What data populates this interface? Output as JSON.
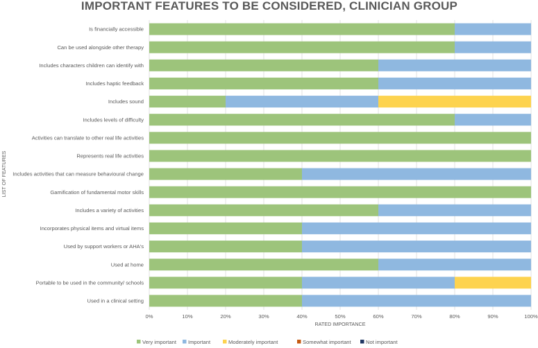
{
  "chart_data": {
    "type": "bar",
    "orientation": "horizontal",
    "stacked": "percent",
    "title": "IMPORTANT FEATURES TO BE CONSIDERED, CLINICIAN GROUP",
    "xlabel": "RATED IMPORTANCE",
    "ylabel": "LIST OF FEATURES",
    "xlim": [
      0,
      100
    ],
    "x_ticks": [
      "0%",
      "10%",
      "20%",
      "30%",
      "40%",
      "50%",
      "60%",
      "70%",
      "80%",
      "90%",
      "100%"
    ],
    "grid": true,
    "legend_position": "bottom",
    "categories": [
      "Is financially accessible",
      "Can be used alongside other therapy",
      "Includes characters children can identify with",
      "Includes haptic feedback",
      "Includes sound",
      "Includes levels of difficulty",
      "Activities can translate to other real life activities",
      "Represents real life activities",
      "Includes activities that can measure behavioural change",
      "Gamification of fundamental motor skills",
      "Includes a variety of activities",
      "Incorporates physical items and virtual items",
      "Used by support workers or AHA's",
      "Used at home",
      "Portable to be used in the community/ schools",
      "Used in a clinical setting"
    ],
    "series": [
      {
        "name": "Very important",
        "color": "#9dc47b",
        "values": [
          80,
          80,
          60,
          60,
          20,
          80,
          100,
          100,
          40,
          100,
          60,
          40,
          40,
          60,
          40,
          40
        ]
      },
      {
        "name": "Important",
        "color": "#8fb8e0",
        "values": [
          20,
          20,
          40,
          40,
          40,
          20,
          0,
          0,
          60,
          0,
          40,
          60,
          60,
          40,
          40,
          60
        ]
      },
      {
        "name": "Moderately important",
        "color": "#fdd34f",
        "values": [
          0,
          0,
          0,
          0,
          40,
          0,
          0,
          0,
          0,
          0,
          0,
          0,
          0,
          0,
          20,
          0
        ]
      },
      {
        "name": "Somewhat important",
        "color": "#c55a11",
        "values": [
          0,
          0,
          0,
          0,
          0,
          0,
          0,
          0,
          0,
          0,
          0,
          0,
          0,
          0,
          0,
          0
        ]
      },
      {
        "name": "Not important",
        "color": "#203864",
        "values": [
          0,
          0,
          0,
          0,
          0,
          0,
          0,
          0,
          0,
          0,
          0,
          0,
          0,
          0,
          0,
          0
        ]
      }
    ]
  }
}
